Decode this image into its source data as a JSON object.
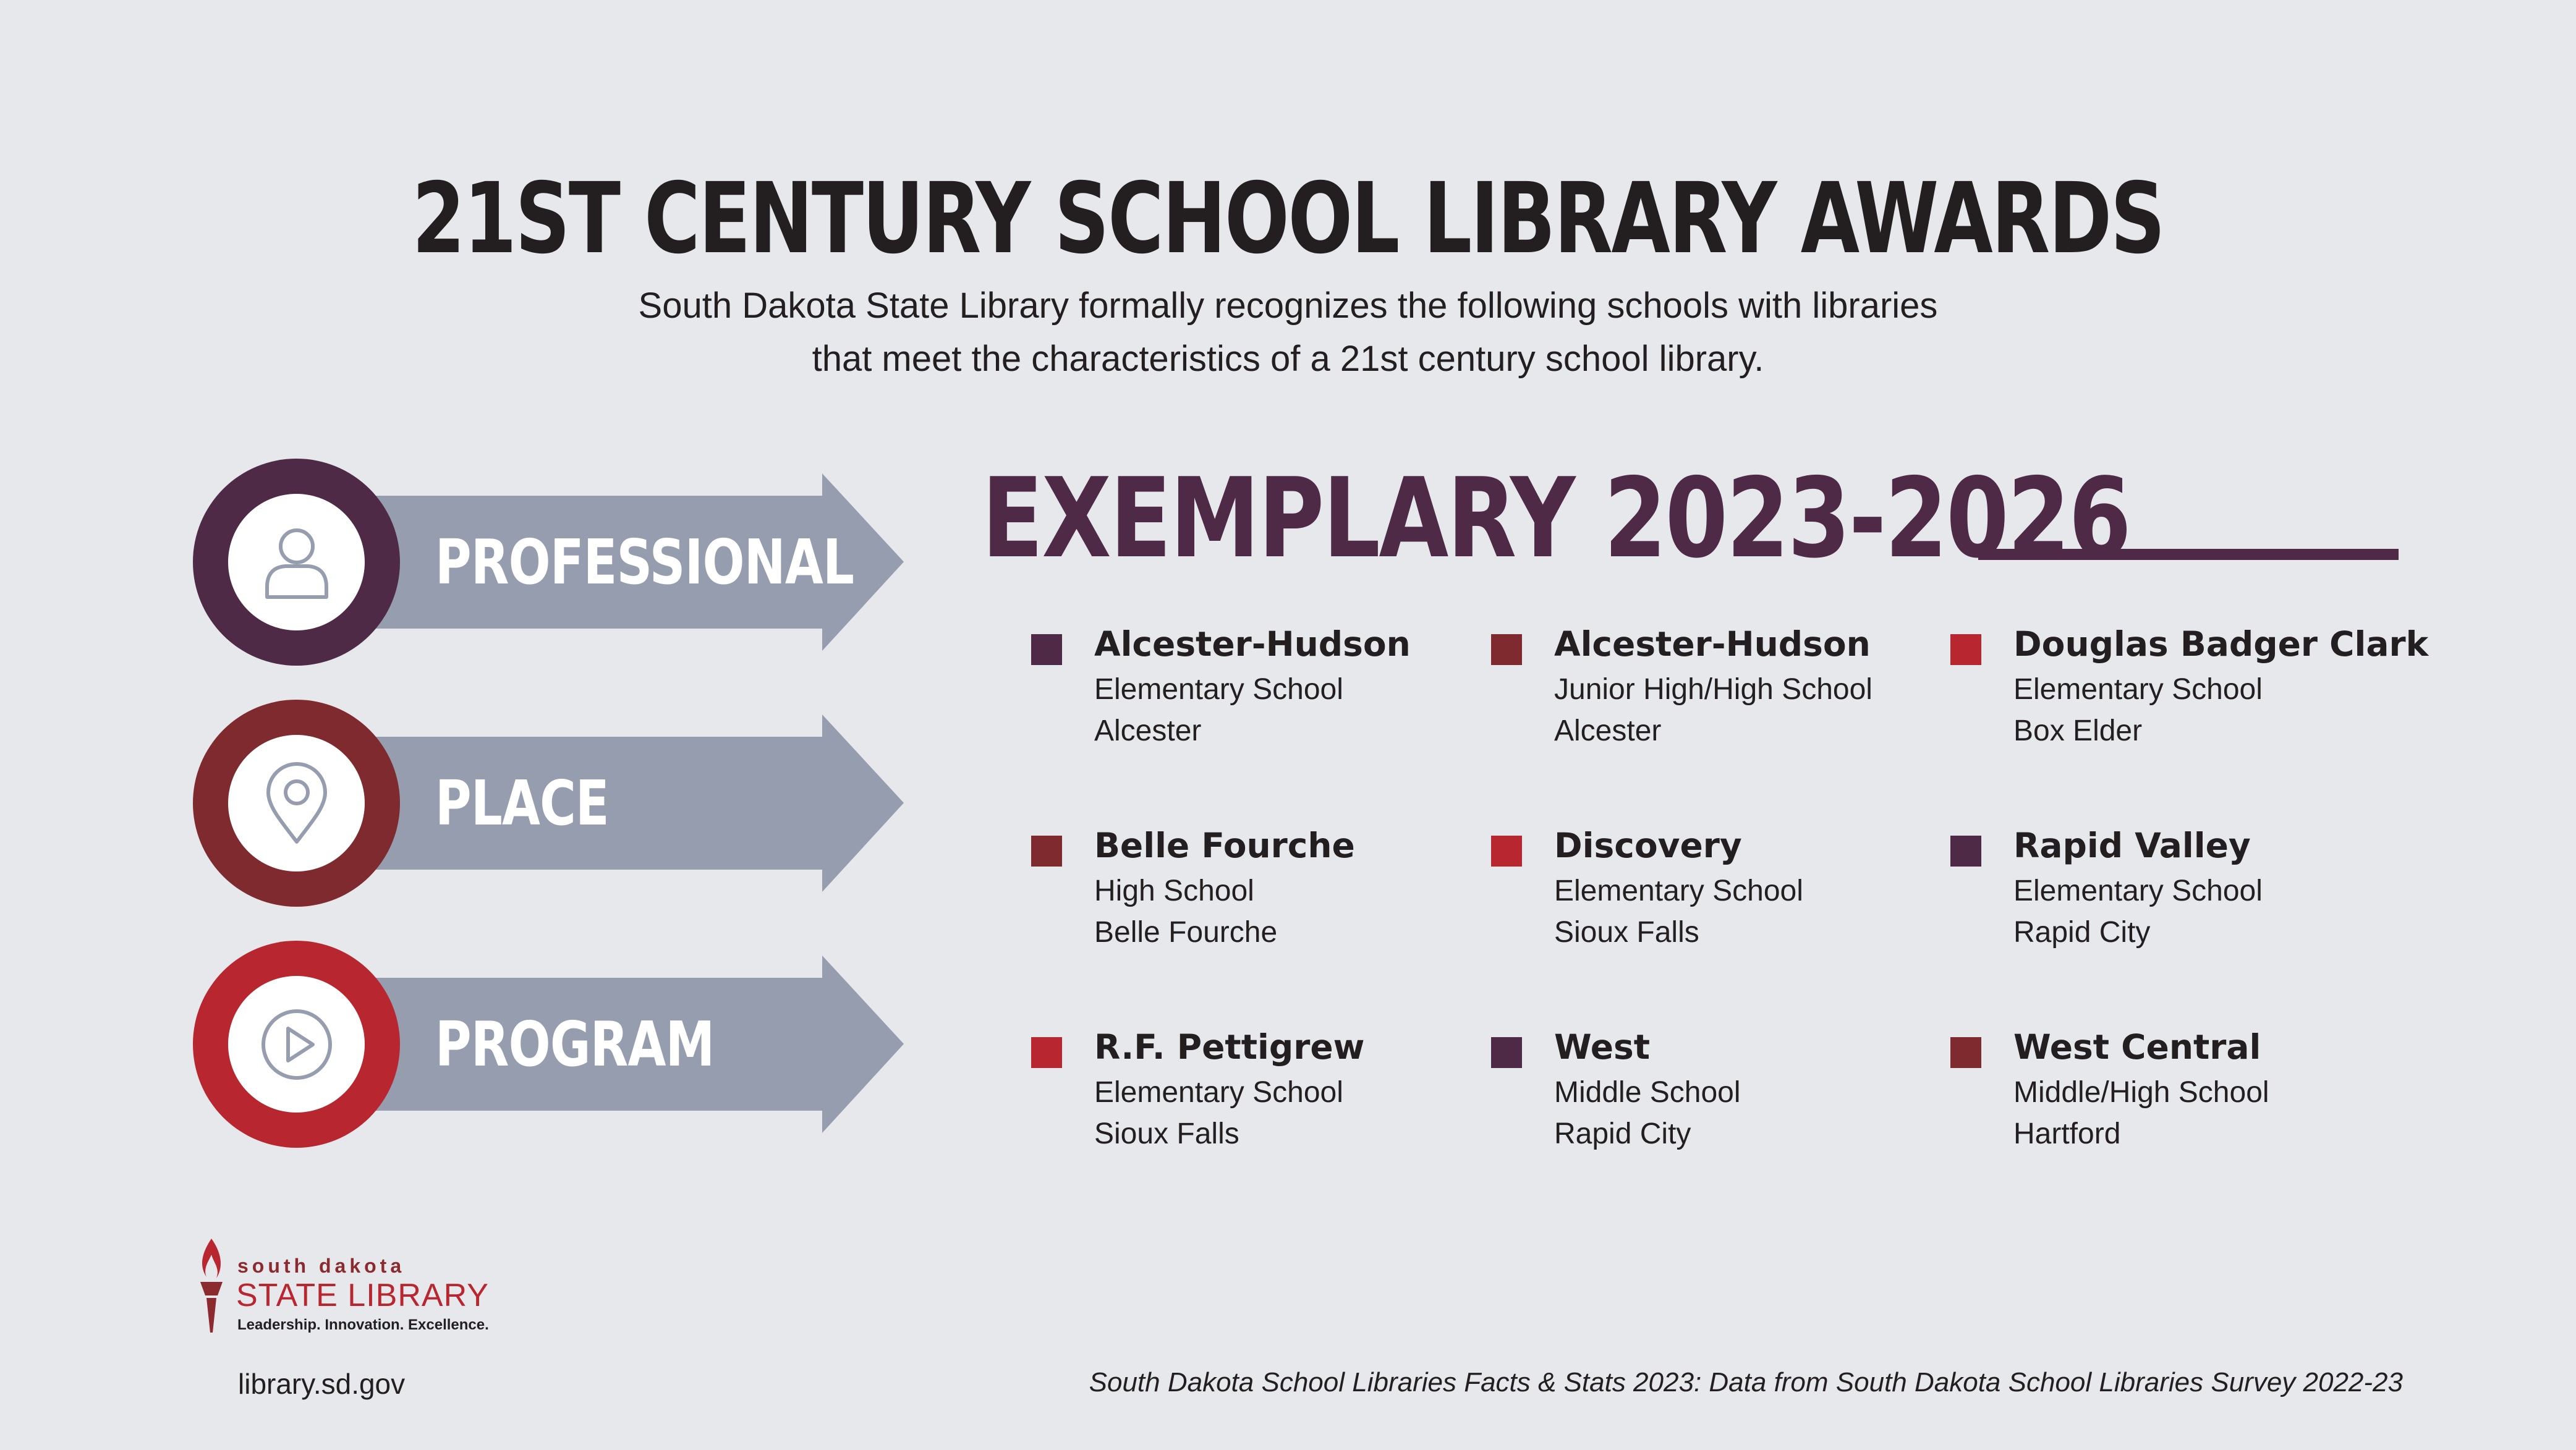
{
  "header": {
    "title": "21ST CENTURY SCHOOL LIBRARY AWARDS",
    "subtitle_line1": "South Dakota State Library formally recognizes the following schools with libraries",
    "subtitle_line2": "that meet the characteristics of a 21st century school library."
  },
  "pillars": [
    {
      "label": "PROFESSIONAL",
      "icon": "person-icon",
      "color": "#4e2a47"
    },
    {
      "label": "PLACE",
      "icon": "location-pin-icon",
      "color": "#7e2a2e"
    },
    {
      "label": "PROGRAM",
      "icon": "play-icon",
      "color": "#b8262f"
    }
  ],
  "exemplary": {
    "heading": "EXEMPLARY 2023-2026",
    "schools": [
      {
        "name": "Alcester-Hudson",
        "type": "Elementary School",
        "city": "Alcester",
        "color": "#4e2a47"
      },
      {
        "name": "Alcester-Hudson",
        "type": "Junior High/High School",
        "city": "Alcester",
        "color": "#7e2a2e"
      },
      {
        "name": "Douglas Badger Clark",
        "type": "Elementary School",
        "city": "Box Elder",
        "color": "#b8262f"
      },
      {
        "name": "Belle Fourche",
        "type": "High School",
        "city": "Belle Fourche",
        "color": "#7e2a2e"
      },
      {
        "name": "Discovery",
        "type": "Elementary School",
        "city": "Sioux Falls",
        "color": "#b8262f"
      },
      {
        "name": "Rapid Valley",
        "type": "Elementary School",
        "city": "Rapid City",
        "color": "#4e2a47"
      },
      {
        "name": "R.F. Pettigrew",
        "type": "Elementary School",
        "city": "Sioux Falls",
        "color": "#b8262f"
      },
      {
        "name": "West",
        "type": "Middle School",
        "city": "Rapid City",
        "color": "#4e2a47"
      },
      {
        "name": "West Central",
        "type": "Middle/High School",
        "city": "Hartford",
        "color": "#7e2a2e"
      }
    ]
  },
  "logo": {
    "line1": "south dakota",
    "line2": "STATE LIBRARY",
    "tagline": "Leadership. Innovation. Excellence."
  },
  "footer": {
    "website": "library.sd.gov",
    "source": "South Dakota School Libraries Facts & Stats 2023: Data from South Dakota School Libraries Survey 2022-23"
  }
}
